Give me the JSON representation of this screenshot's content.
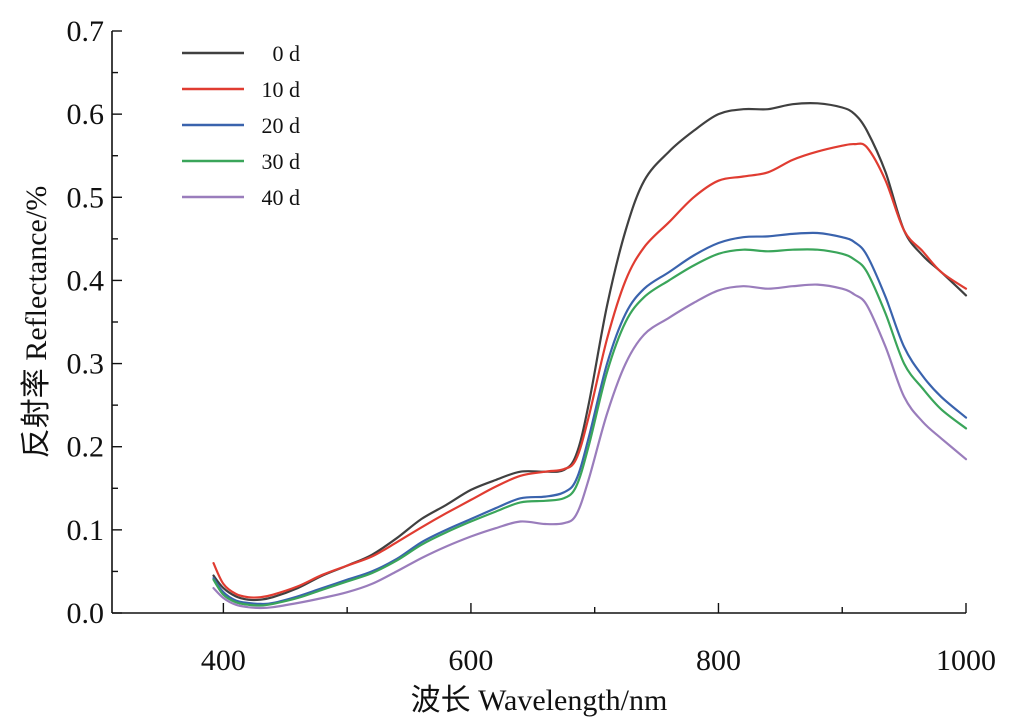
{
  "chart_data": {
    "type": "line",
    "title": "",
    "xlabel": "波长 Wavelength/nm",
    "ylabel": "反射率 Reflectance/%",
    "xlim": [
      310,
      1000
    ],
    "ylim": [
      0,
      0.7
    ],
    "x_ticks": [
      400,
      600,
      800,
      1000
    ],
    "x_tick_labels": [
      "400",
      "600",
      "800",
      "1000"
    ],
    "x_minor_ticks": [
      500,
      700,
      900
    ],
    "y_ticks": [
      0,
      0.1,
      0.2,
      0.3,
      0.4,
      0.5,
      0.6,
      0.7
    ],
    "y_tick_labels": [
      "0.0",
      "0.1",
      "0.2",
      "0.3",
      "0.4",
      "0.5",
      "0.6",
      "0.7"
    ],
    "y_minor_ticks": [
      0.05,
      0.15,
      0.25,
      0.35,
      0.45,
      0.55,
      0.65
    ],
    "grid": false,
    "legend_position": "top-left",
    "x": [
      392,
      400,
      410,
      420,
      430,
      440,
      460,
      480,
      500,
      520,
      540,
      560,
      580,
      600,
      620,
      640,
      660,
      675,
      685,
      695,
      710,
      725,
      740,
      760,
      780,
      800,
      820,
      840,
      860,
      880,
      900,
      910,
      920,
      935,
      950,
      965,
      980,
      1000
    ],
    "series": [
      {
        "name": "0 d",
        "color": "#404040",
        "values": [
          0.045,
          0.03,
          0.02,
          0.016,
          0.016,
          0.019,
          0.03,
          0.045,
          0.057,
          0.07,
          0.09,
          0.113,
          0.13,
          0.148,
          0.16,
          0.17,
          0.17,
          0.172,
          0.19,
          0.25,
          0.37,
          0.46,
          0.52,
          0.555,
          0.58,
          0.6,
          0.606,
          0.606,
          0.612,
          0.613,
          0.608,
          0.6,
          0.58,
          0.53,
          0.46,
          0.43,
          0.41,
          0.382
        ]
      },
      {
        "name": "10 d",
        "color": "#e03c31",
        "values": [
          0.06,
          0.035,
          0.023,
          0.019,
          0.019,
          0.022,
          0.032,
          0.046,
          0.057,
          0.068,
          0.085,
          0.103,
          0.12,
          0.136,
          0.152,
          0.165,
          0.17,
          0.173,
          0.185,
          0.235,
          0.33,
          0.4,
          0.44,
          0.47,
          0.5,
          0.52,
          0.525,
          0.53,
          0.545,
          0.555,
          0.562,
          0.564,
          0.56,
          0.52,
          0.46,
          0.435,
          0.41,
          0.39
        ]
      },
      {
        "name": "20 d",
        "color": "#3a63ad",
        "values": [
          0.042,
          0.025,
          0.015,
          0.012,
          0.011,
          0.012,
          0.02,
          0.03,
          0.04,
          0.05,
          0.065,
          0.085,
          0.1,
          0.113,
          0.126,
          0.138,
          0.14,
          0.145,
          0.16,
          0.21,
          0.3,
          0.36,
          0.39,
          0.41,
          0.43,
          0.445,
          0.452,
          0.453,
          0.456,
          0.457,
          0.452,
          0.446,
          0.43,
          0.38,
          0.32,
          0.285,
          0.26,
          0.235
        ]
      },
      {
        "name": "30 d",
        "color": "#3aa55a",
        "values": [
          0.04,
          0.022,
          0.013,
          0.01,
          0.009,
          0.011,
          0.018,
          0.028,
          0.038,
          0.048,
          0.063,
          0.082,
          0.097,
          0.11,
          0.122,
          0.133,
          0.135,
          0.138,
          0.152,
          0.2,
          0.29,
          0.35,
          0.38,
          0.4,
          0.418,
          0.432,
          0.437,
          0.435,
          0.437,
          0.437,
          0.432,
          0.425,
          0.41,
          0.36,
          0.3,
          0.27,
          0.245,
          0.222
        ]
      },
      {
        "name": "40 d",
        "color": "#9a7dbc",
        "values": [
          0.03,
          0.018,
          0.01,
          0.007,
          0.006,
          0.007,
          0.012,
          0.018,
          0.025,
          0.035,
          0.05,
          0.066,
          0.08,
          0.092,
          0.102,
          0.11,
          0.107,
          0.108,
          0.118,
          0.16,
          0.24,
          0.3,
          0.335,
          0.355,
          0.373,
          0.388,
          0.393,
          0.39,
          0.393,
          0.395,
          0.39,
          0.383,
          0.37,
          0.32,
          0.26,
          0.23,
          0.21,
          0.185
        ]
      }
    ]
  }
}
